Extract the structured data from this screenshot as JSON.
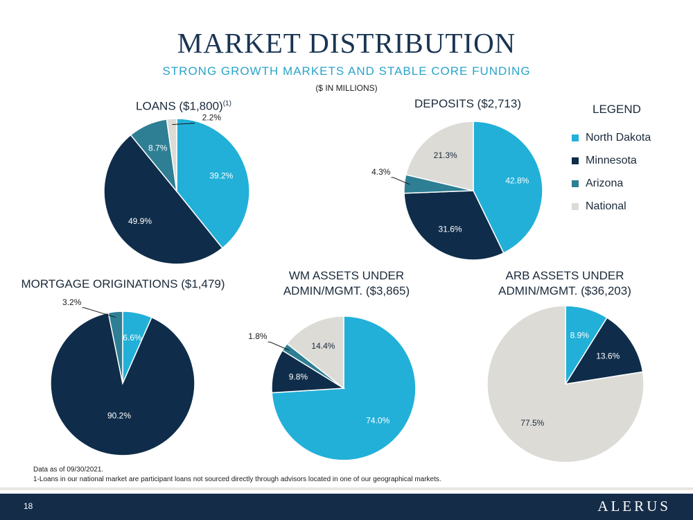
{
  "header": {
    "title": "MARKET DISTRIBUTION",
    "subtitle": "STRONG GROWTH MARKETS AND STABLE CORE FUNDING",
    "units": "($ IN MILLIONS)"
  },
  "colors": {
    "north_dakota": "#22b0d8",
    "minnesota": "#0f2d4a",
    "arizona": "#2e7f94",
    "national": "#dcdbd6",
    "title": "#1a3553",
    "subtitle": "#29a3c8",
    "footer": "#152c48"
  },
  "legend": {
    "title": "LEGEND",
    "items": [
      {
        "label": "North Dakota"
      },
      {
        "label": "Minnesota"
      },
      {
        "label": "Arizona"
      },
      {
        "label": "National"
      }
    ]
  },
  "chart_data": [
    {
      "type": "pie",
      "title": "LOANS ($1,800)",
      "title_sup": "(1)",
      "slices": [
        {
          "label": "39.2%",
          "value": 39.2,
          "series": "North Dakota"
        },
        {
          "label": "49.9%",
          "value": 49.9,
          "series": "Minnesota"
        },
        {
          "label": "8.7%",
          "value": 8.7,
          "series": "Arizona"
        },
        {
          "label": "2.2%",
          "value": 2.2,
          "series": "National"
        }
      ]
    },
    {
      "type": "pie",
      "title": "DEPOSITS ($2,713)",
      "slices": [
        {
          "label": "42.8%",
          "value": 42.8,
          "series": "North Dakota"
        },
        {
          "label": "31.6%",
          "value": 31.6,
          "series": "Minnesota"
        },
        {
          "label": "4.3%",
          "value": 4.3,
          "series": "Arizona"
        },
        {
          "label": "21.3%",
          "value": 21.3,
          "series": "National"
        }
      ]
    },
    {
      "type": "pie",
      "title": "MORTGAGE ORIGINATIONS ($1,479)",
      "slices": [
        {
          "label": "6.6%",
          "value": 6.6,
          "series": "North Dakota"
        },
        {
          "label": "90.2%",
          "value": 90.2,
          "series": "Minnesota"
        },
        {
          "label": "3.2%",
          "value": 3.2,
          "series": "Arizona"
        }
      ]
    },
    {
      "type": "pie",
      "title": "WM ASSETS UNDER ADMIN/MGMT. ($3,865)",
      "title_lines": [
        "WM ASSETS UNDER",
        "ADMIN/MGMT. ($3,865)"
      ],
      "slices": [
        {
          "label": "74.0%",
          "value": 74.0,
          "series": "North Dakota"
        },
        {
          "label": "9.8%",
          "value": 9.8,
          "series": "Minnesota"
        },
        {
          "label": "1.8%",
          "value": 1.8,
          "series": "Arizona"
        },
        {
          "label": "14.4%",
          "value": 14.4,
          "series": "National"
        }
      ]
    },
    {
      "type": "pie",
      "title": "ARB ASSETS UNDER ADMIN/MGMT. ($36,203)",
      "title_lines": [
        "ARB ASSETS UNDER",
        "ADMIN/MGMT. ($36,203)"
      ],
      "slices": [
        {
          "label": "8.9%",
          "value": 8.9,
          "series": "North Dakota"
        },
        {
          "label": "13.6%",
          "value": 13.6,
          "series": "Minnesota"
        },
        {
          "label": "77.5%",
          "value": 77.5,
          "series": "National"
        }
      ]
    }
  ],
  "footnotes": {
    "line1": "Data as of 09/30/2021.",
    "line2": "1-Loans in our national market are participant loans not sourced directly through advisors located in one of our geographical markets."
  },
  "footer": {
    "page_number": "18",
    "logo": "ALERUS"
  }
}
